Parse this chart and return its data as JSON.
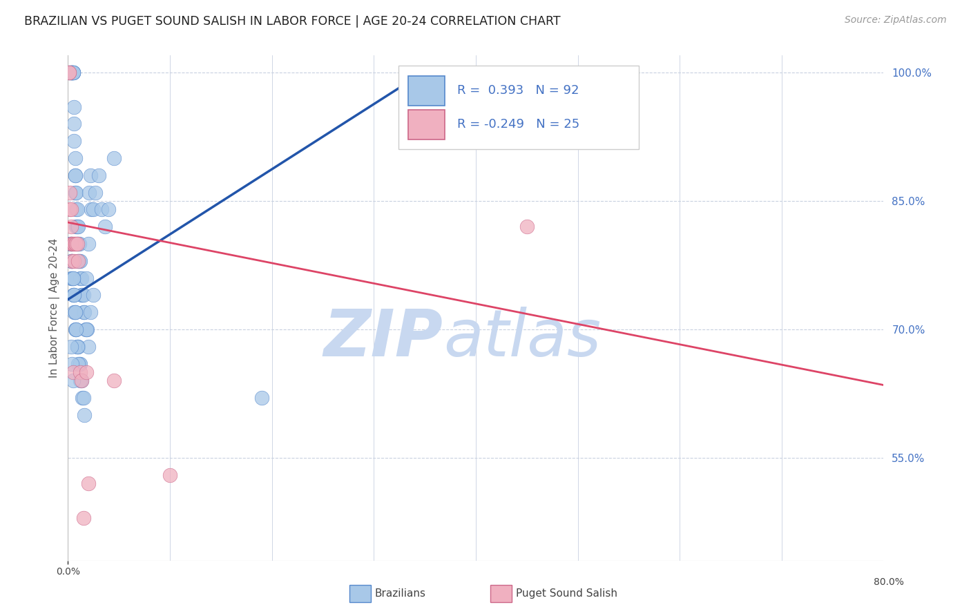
{
  "title": "BRAZILIAN VS PUGET SOUND SALISH IN LABOR FORCE | AGE 20-24 CORRELATION CHART",
  "source": "Source: ZipAtlas.com",
  "ylabel": "In Labor Force | Age 20-24",
  "legend_label1": "Brazilians",
  "legend_label2": "Puget Sound Salish",
  "R1": 0.393,
  "N1": 92,
  "R2": -0.249,
  "N2": 25,
  "color_blue": "#a8c8e8",
  "color_blue_edge": "#5588cc",
  "color_blue_line": "#2255aa",
  "color_pink": "#f0b0c0",
  "color_pink_edge": "#cc6688",
  "color_pink_line": "#dd4466",
  "color_blue_text": "#4472c4",
  "color_axis_right": "#4472c4",
  "watermark_zip": "ZIP",
  "watermark_atlas": "atlas",
  "watermark_color": "#c8d8f0",
  "background_color": "#ffffff",
  "grid_color": "#c8d0e0",
  "xlim": [
    0.0,
    0.8
  ],
  "ylim": [
    0.43,
    1.02
  ],
  "yticks": [
    1.0,
    0.85,
    0.7,
    0.55
  ],
  "ytick_labels": [
    "100.0%",
    "85.0%",
    "70.0%",
    "55.0%"
  ],
  "blue_x": [
    0.001,
    0.002,
    0.002,
    0.003,
    0.003,
    0.003,
    0.004,
    0.004,
    0.004,
    0.004,
    0.005,
    0.005,
    0.005,
    0.005,
    0.006,
    0.006,
    0.006,
    0.007,
    0.007,
    0.007,
    0.007,
    0.008,
    0.008,
    0.008,
    0.009,
    0.009,
    0.009,
    0.01,
    0.01,
    0.01,
    0.011,
    0.011,
    0.012,
    0.012,
    0.013,
    0.013,
    0.014,
    0.015,
    0.015,
    0.016,
    0.017,
    0.018,
    0.019,
    0.02,
    0.021,
    0.022,
    0.023,
    0.025,
    0.027,
    0.03,
    0.033,
    0.036,
    0.04,
    0.045,
    0.003,
    0.003,
    0.003,
    0.004,
    0.004,
    0.005,
    0.005,
    0.006,
    0.006,
    0.007,
    0.007,
    0.008,
    0.009,
    0.01,
    0.011,
    0.012,
    0.013,
    0.014,
    0.015,
    0.016,
    0.018,
    0.02,
    0.022,
    0.025,
    0.002,
    0.003,
    0.004,
    0.005,
    0.006,
    0.007,
    0.008,
    0.009,
    0.01,
    0.012,
    0.19,
    0.003,
    0.004,
    0.005
  ],
  "blue_y": [
    1.0,
    1.0,
    1.0,
    1.0,
    1.0,
    1.0,
    1.0,
    1.0,
    1.0,
    1.0,
    1.0,
    1.0,
    1.0,
    1.0,
    0.96,
    0.94,
    0.92,
    0.9,
    0.88,
    0.88,
    0.86,
    0.86,
    0.84,
    0.82,
    0.84,
    0.82,
    0.8,
    0.82,
    0.8,
    0.78,
    0.8,
    0.78,
    0.78,
    0.76,
    0.76,
    0.74,
    0.74,
    0.74,
    0.72,
    0.72,
    0.7,
    0.76,
    0.7,
    0.8,
    0.86,
    0.88,
    0.84,
    0.84,
    0.86,
    0.88,
    0.84,
    0.82,
    0.84,
    0.9,
    0.8,
    0.78,
    0.76,
    0.78,
    0.76,
    0.76,
    0.74,
    0.74,
    0.72,
    0.72,
    0.7,
    0.7,
    0.68,
    0.68,
    0.66,
    0.66,
    0.64,
    0.62,
    0.62,
    0.6,
    0.7,
    0.68,
    0.72,
    0.74,
    0.8,
    0.8,
    0.78,
    0.76,
    0.74,
    0.72,
    0.7,
    0.68,
    0.66,
    0.64,
    0.62,
    0.68,
    0.66,
    0.64
  ],
  "pink_x": [
    0.001,
    0.001,
    0.002,
    0.002,
    0.003,
    0.003,
    0.003,
    0.004,
    0.004,
    0.005,
    0.005,
    0.006,
    0.006,
    0.007,
    0.008,
    0.009,
    0.01,
    0.012,
    0.013,
    0.015,
    0.018,
    0.02,
    0.045,
    0.1,
    0.45
  ],
  "pink_y": [
    1.0,
    1.0,
    0.86,
    0.84,
    0.84,
    0.82,
    0.8,
    0.8,
    0.78,
    0.8,
    0.65,
    0.8,
    0.78,
    0.8,
    0.8,
    0.8,
    0.78,
    0.65,
    0.64,
    0.48,
    0.65,
    0.52,
    0.64,
    0.53,
    0.82
  ],
  "blue_trend_x0": 0.0,
  "blue_trend_x1": 0.355,
  "blue_trend_y0": 0.735,
  "blue_trend_y1": 1.005,
  "pink_trend_x0": 0.0,
  "pink_trend_x1": 0.8,
  "pink_trend_y0": 0.825,
  "pink_trend_y1": 0.635
}
